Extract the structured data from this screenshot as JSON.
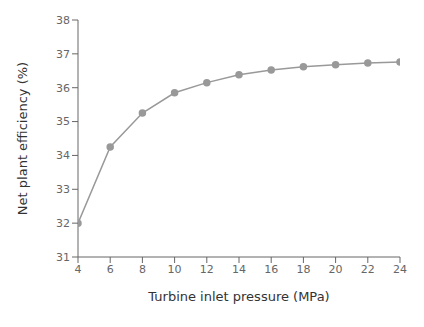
{
  "chart_data": {
    "type": "line",
    "x": [
      4,
      6,
      8,
      10,
      12,
      14,
      16,
      18,
      20,
      22,
      24
    ],
    "values": [
      32.0,
      34.25,
      35.25,
      35.85,
      36.15,
      36.38,
      36.52,
      36.62,
      36.68,
      36.73,
      36.76
    ],
    "xlabel": "Turbine inlet pressure (MPa)",
    "ylabel": "Net plant efficiency (%)",
    "xlim": [
      4,
      24
    ],
    "ylim": [
      31,
      38
    ],
    "xticks": [
      4,
      6,
      8,
      10,
      12,
      14,
      16,
      18,
      20,
      22,
      24
    ],
    "yticks": [
      31,
      32,
      33,
      34,
      35,
      36,
      37,
      38
    ],
    "color": "#999999",
    "marker": "circle",
    "grid": false
  }
}
